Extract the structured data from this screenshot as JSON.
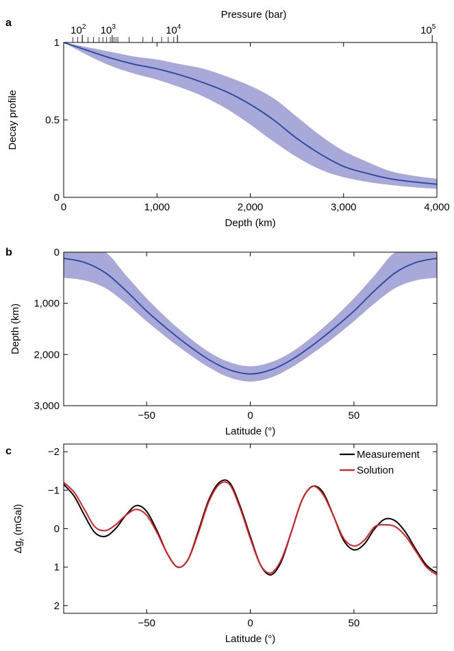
{
  "panels": {
    "a": {
      "letter": "a"
    },
    "b": {
      "letter": "b"
    },
    "c": {
      "letter": "c"
    }
  },
  "chart_data": [
    {
      "type": "line",
      "panel": "a",
      "xlabel": "Depth (km)",
      "ylabel": "Decay profile",
      "xlim": [
        0,
        4000
      ],
      "ylim": [
        0,
        1
      ],
      "xticks": [
        0,
        1000,
        2000,
        3000,
        4000
      ],
      "xtick_labels": [
        "0",
        "1,000",
        "2,000",
        "3,000",
        "4,000"
      ],
      "yticks": [
        0,
        0.5,
        1
      ],
      "ytick_labels": [
        "0",
        "0.5",
        "1"
      ],
      "top_axis": {
        "label": "Pressure (bar)",
        "major_labels": [
          {
            "base": "10",
            "exp": "2",
            "depth": 200
          },
          {
            "base": "10",
            "exp": "3",
            "depth": 520
          },
          {
            "base": "10",
            "exp": "4",
            "depth": 1220
          },
          {
            "base": "10",
            "exp": "5",
            "depth": 3950
          }
        ],
        "minor_tick_depths": [
          100,
          150,
          200,
          260,
          320,
          380,
          420,
          460,
          500,
          520,
          540,
          560,
          580,
          700,
          850,
          950,
          1050,
          1120,
          1180,
          1220
        ]
      },
      "grid": false,
      "series": [
        {
          "color": "#2e4ea3",
          "band_color": "#a9a9d9",
          "x": [
            0,
            250,
            500,
            750,
            1000,
            1250,
            1500,
            1750,
            2000,
            2250,
            2500,
            2750,
            3000,
            3250,
            3500,
            3750,
            4000
          ],
          "y": [
            1.0,
            0.95,
            0.9,
            0.86,
            0.83,
            0.79,
            0.74,
            0.68,
            0.6,
            0.5,
            0.38,
            0.28,
            0.2,
            0.155,
            0.12,
            0.1,
            0.085
          ],
          "y_lower": [
            1.0,
            0.92,
            0.85,
            0.8,
            0.76,
            0.71,
            0.65,
            0.57,
            0.47,
            0.36,
            0.26,
            0.18,
            0.13,
            0.1,
            0.08,
            0.065,
            0.055
          ],
          "y_upper": [
            1.0,
            0.97,
            0.94,
            0.91,
            0.89,
            0.86,
            0.83,
            0.78,
            0.72,
            0.64,
            0.52,
            0.4,
            0.3,
            0.23,
            0.17,
            0.14,
            0.12
          ]
        }
      ]
    },
    {
      "type": "line",
      "panel": "b",
      "xlabel": "Latitude (°)",
      "ylabel": "Depth (km)",
      "xlim": [
        -90,
        90
      ],
      "ylim": [
        3000,
        0
      ],
      "xticks": [
        -50,
        0,
        50
      ],
      "xtick_labels": [
        "−50",
        "0",
        "50"
      ],
      "yticks": [
        0,
        1000,
        2000,
        3000
      ],
      "ytick_labels": [
        "0",
        "1,000",
        "2,000",
        "3,000"
      ],
      "grid": false,
      "series": [
        {
          "color": "#2e4ea3",
          "band_color": "#a9a9d9",
          "x": [
            -90,
            -80,
            -70,
            -60,
            -50,
            -40,
            -30,
            -20,
            -10,
            0,
            10,
            20,
            30,
            40,
            50,
            60,
            70,
            80,
            90
          ],
          "y": [
            120,
            200,
            400,
            750,
            1150,
            1500,
            1820,
            2100,
            2300,
            2380,
            2300,
            2100,
            1820,
            1500,
            1150,
            750,
            400,
            200,
            120
          ],
          "y_lower": [
            500,
            550,
            700,
            1000,
            1350,
            1680,
            1980,
            2250,
            2450,
            2530,
            2450,
            2250,
            1980,
            1680,
            1350,
            1000,
            700,
            550,
            500
          ],
          "y_upper": [
            0,
            0,
            0,
            450,
            900,
            1300,
            1650,
            1950,
            2150,
            2230,
            2150,
            1950,
            1650,
            1300,
            900,
            450,
            0,
            0,
            0
          ]
        }
      ]
    },
    {
      "type": "line",
      "panel": "c",
      "xlabel": "Latitude (°)",
      "ylabel": "Δg",
      "ylabel_sub": "r",
      "ylabel_unit": "(mGal)",
      "xlim": [
        -90,
        90
      ],
      "ylim": [
        2.2,
        -2.2
      ],
      "xticks": [
        -50,
        0,
        50
      ],
      "xtick_labels": [
        "−50",
        "0",
        "50"
      ],
      "yticks": [
        -2,
        -1,
        0,
        1,
        2
      ],
      "ytick_labels": [
        "−2",
        "−1",
        "0",
        "1",
        "2"
      ],
      "legend": "top-right",
      "grid": false,
      "series": [
        {
          "name": "Measurement",
          "color": "#000000",
          "x": [
            -90,
            -85,
            -80,
            -75,
            -70,
            -65,
            -60,
            -55,
            -50,
            -45,
            -40,
            -35,
            -30,
            -25,
            -20,
            -15,
            -10,
            -5,
            0,
            5,
            10,
            15,
            20,
            25,
            30,
            35,
            40,
            45,
            50,
            55,
            60,
            65,
            70,
            75,
            80,
            85,
            90
          ],
          "y": [
            -1.15,
            -0.85,
            -0.35,
            0.1,
            0.2,
            0.0,
            -0.35,
            -0.6,
            -0.45,
            0.05,
            0.65,
            1.0,
            0.8,
            0.05,
            -0.75,
            -1.2,
            -1.2,
            -0.6,
            0.2,
            0.95,
            1.2,
            0.85,
            0.05,
            -0.75,
            -1.1,
            -0.95,
            -0.35,
            0.3,
            0.55,
            0.4,
            0.0,
            -0.25,
            -0.2,
            0.1,
            0.55,
            0.95,
            1.15
          ]
        },
        {
          "name": "Solution",
          "color": "#e8191f",
          "x": [
            -90,
            -85,
            -80,
            -75,
            -70,
            -65,
            -60,
            -55,
            -50,
            -45,
            -40,
            -35,
            -30,
            -25,
            -20,
            -15,
            -10,
            -5,
            0,
            5,
            10,
            15,
            20,
            25,
            30,
            35,
            40,
            45,
            50,
            55,
            60,
            65,
            70,
            75,
            80,
            85,
            90
          ],
          "y": [
            -1.2,
            -0.95,
            -0.5,
            -0.05,
            0.05,
            -0.1,
            -0.35,
            -0.5,
            -0.35,
            0.1,
            0.65,
            1.0,
            0.8,
            0.1,
            -0.7,
            -1.15,
            -1.15,
            -0.55,
            0.25,
            0.95,
            1.15,
            0.8,
            0.05,
            -0.75,
            -1.1,
            -0.9,
            -0.35,
            0.25,
            0.45,
            0.3,
            -0.05,
            -0.1,
            -0.05,
            0.2,
            0.6,
            1.0,
            1.2
          ]
        }
      ]
    }
  ]
}
